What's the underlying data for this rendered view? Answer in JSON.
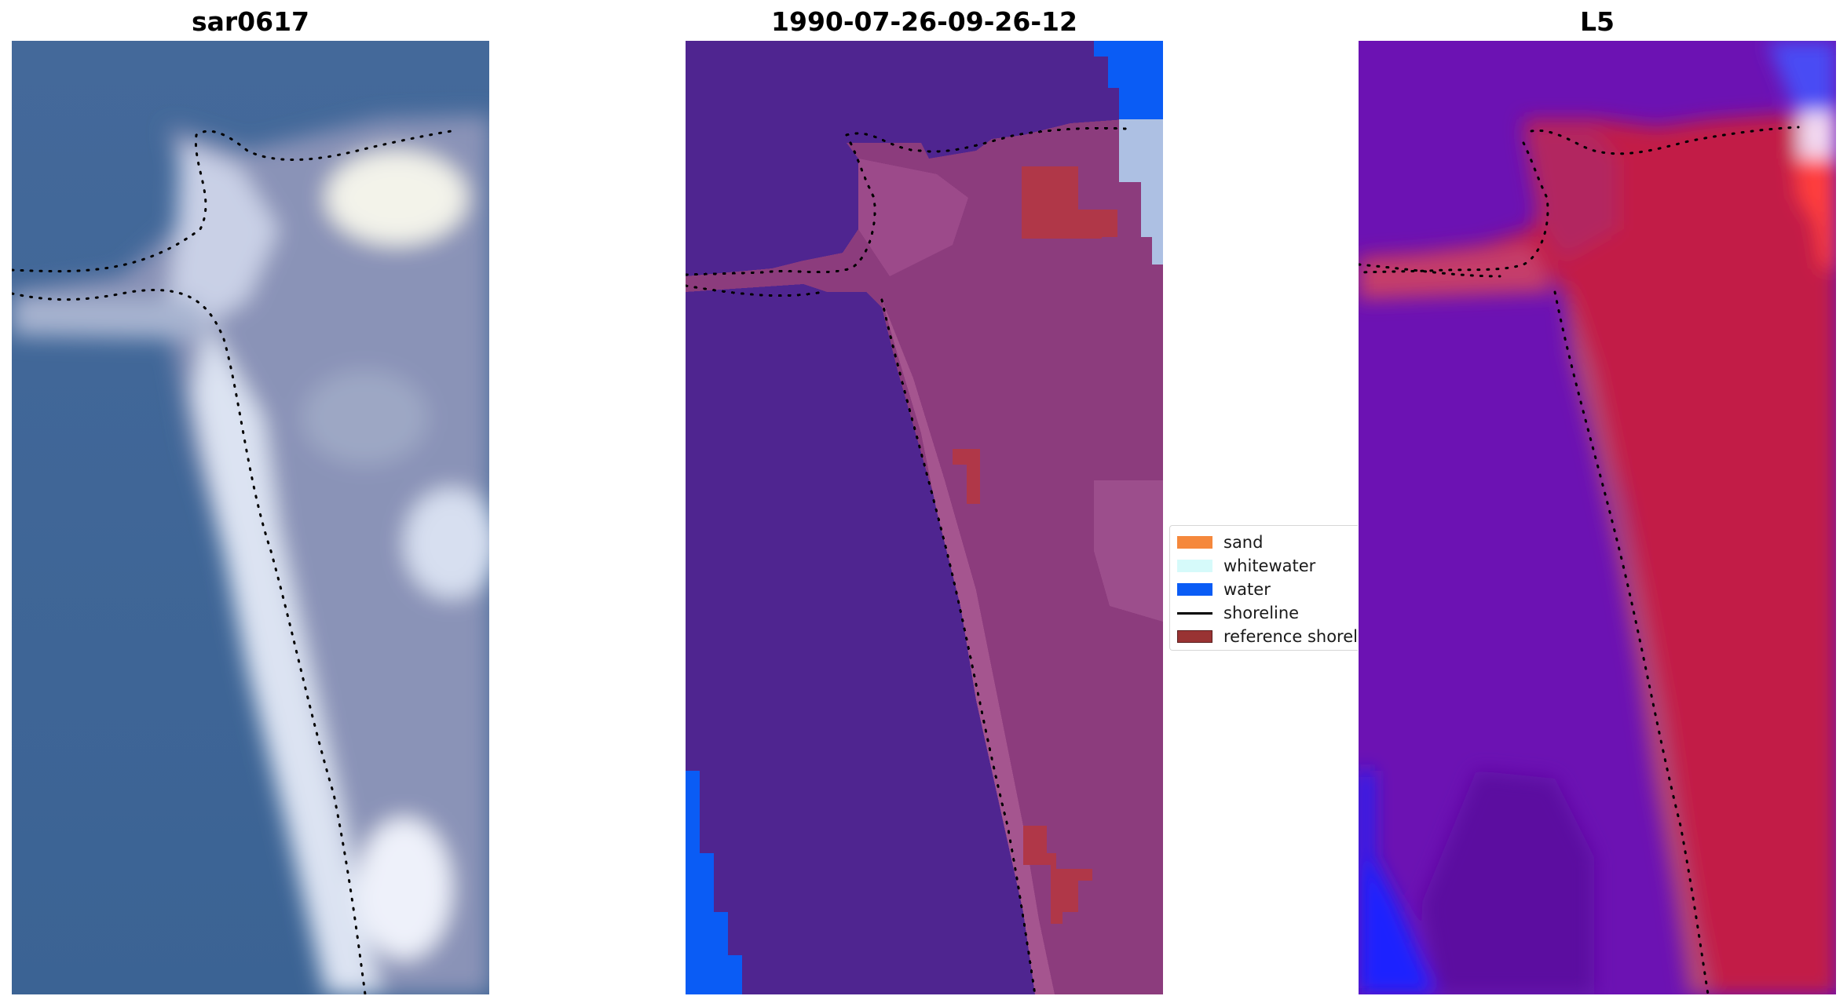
{
  "panels": [
    {
      "title": "sar0617",
      "name": "rgb-image-panel"
    },
    {
      "title": "1990-07-26-09-26-12",
      "name": "classified-image-panel"
    },
    {
      "title": "L5",
      "name": "mndwi-image-panel"
    }
  ],
  "legend": {
    "items": [
      {
        "label": "sand",
        "kind": "patch",
        "color": "#f5883c"
      },
      {
        "label": "whitewater",
        "kind": "patch",
        "color": "#d6fafa"
      },
      {
        "label": "water",
        "kind": "patch",
        "color": "#0a5cf5"
      },
      {
        "label": "shoreline",
        "kind": "line",
        "color": "#000000"
      },
      {
        "label": "reference shoreline",
        "kind": "patch",
        "color": "#993333"
      }
    ]
  },
  "colors": {
    "rgb_water": "#3a6393",
    "classified_bg": "#4f2590",
    "classified_land": "#8c3c7d",
    "classified_water": "#0a5cf5",
    "classified_sand_overlay": "#b03748",
    "mndwi_bg": "#6b0fb0",
    "mndwi_land": "#c21a46",
    "mndwi_blue": "#2222ff"
  }
}
